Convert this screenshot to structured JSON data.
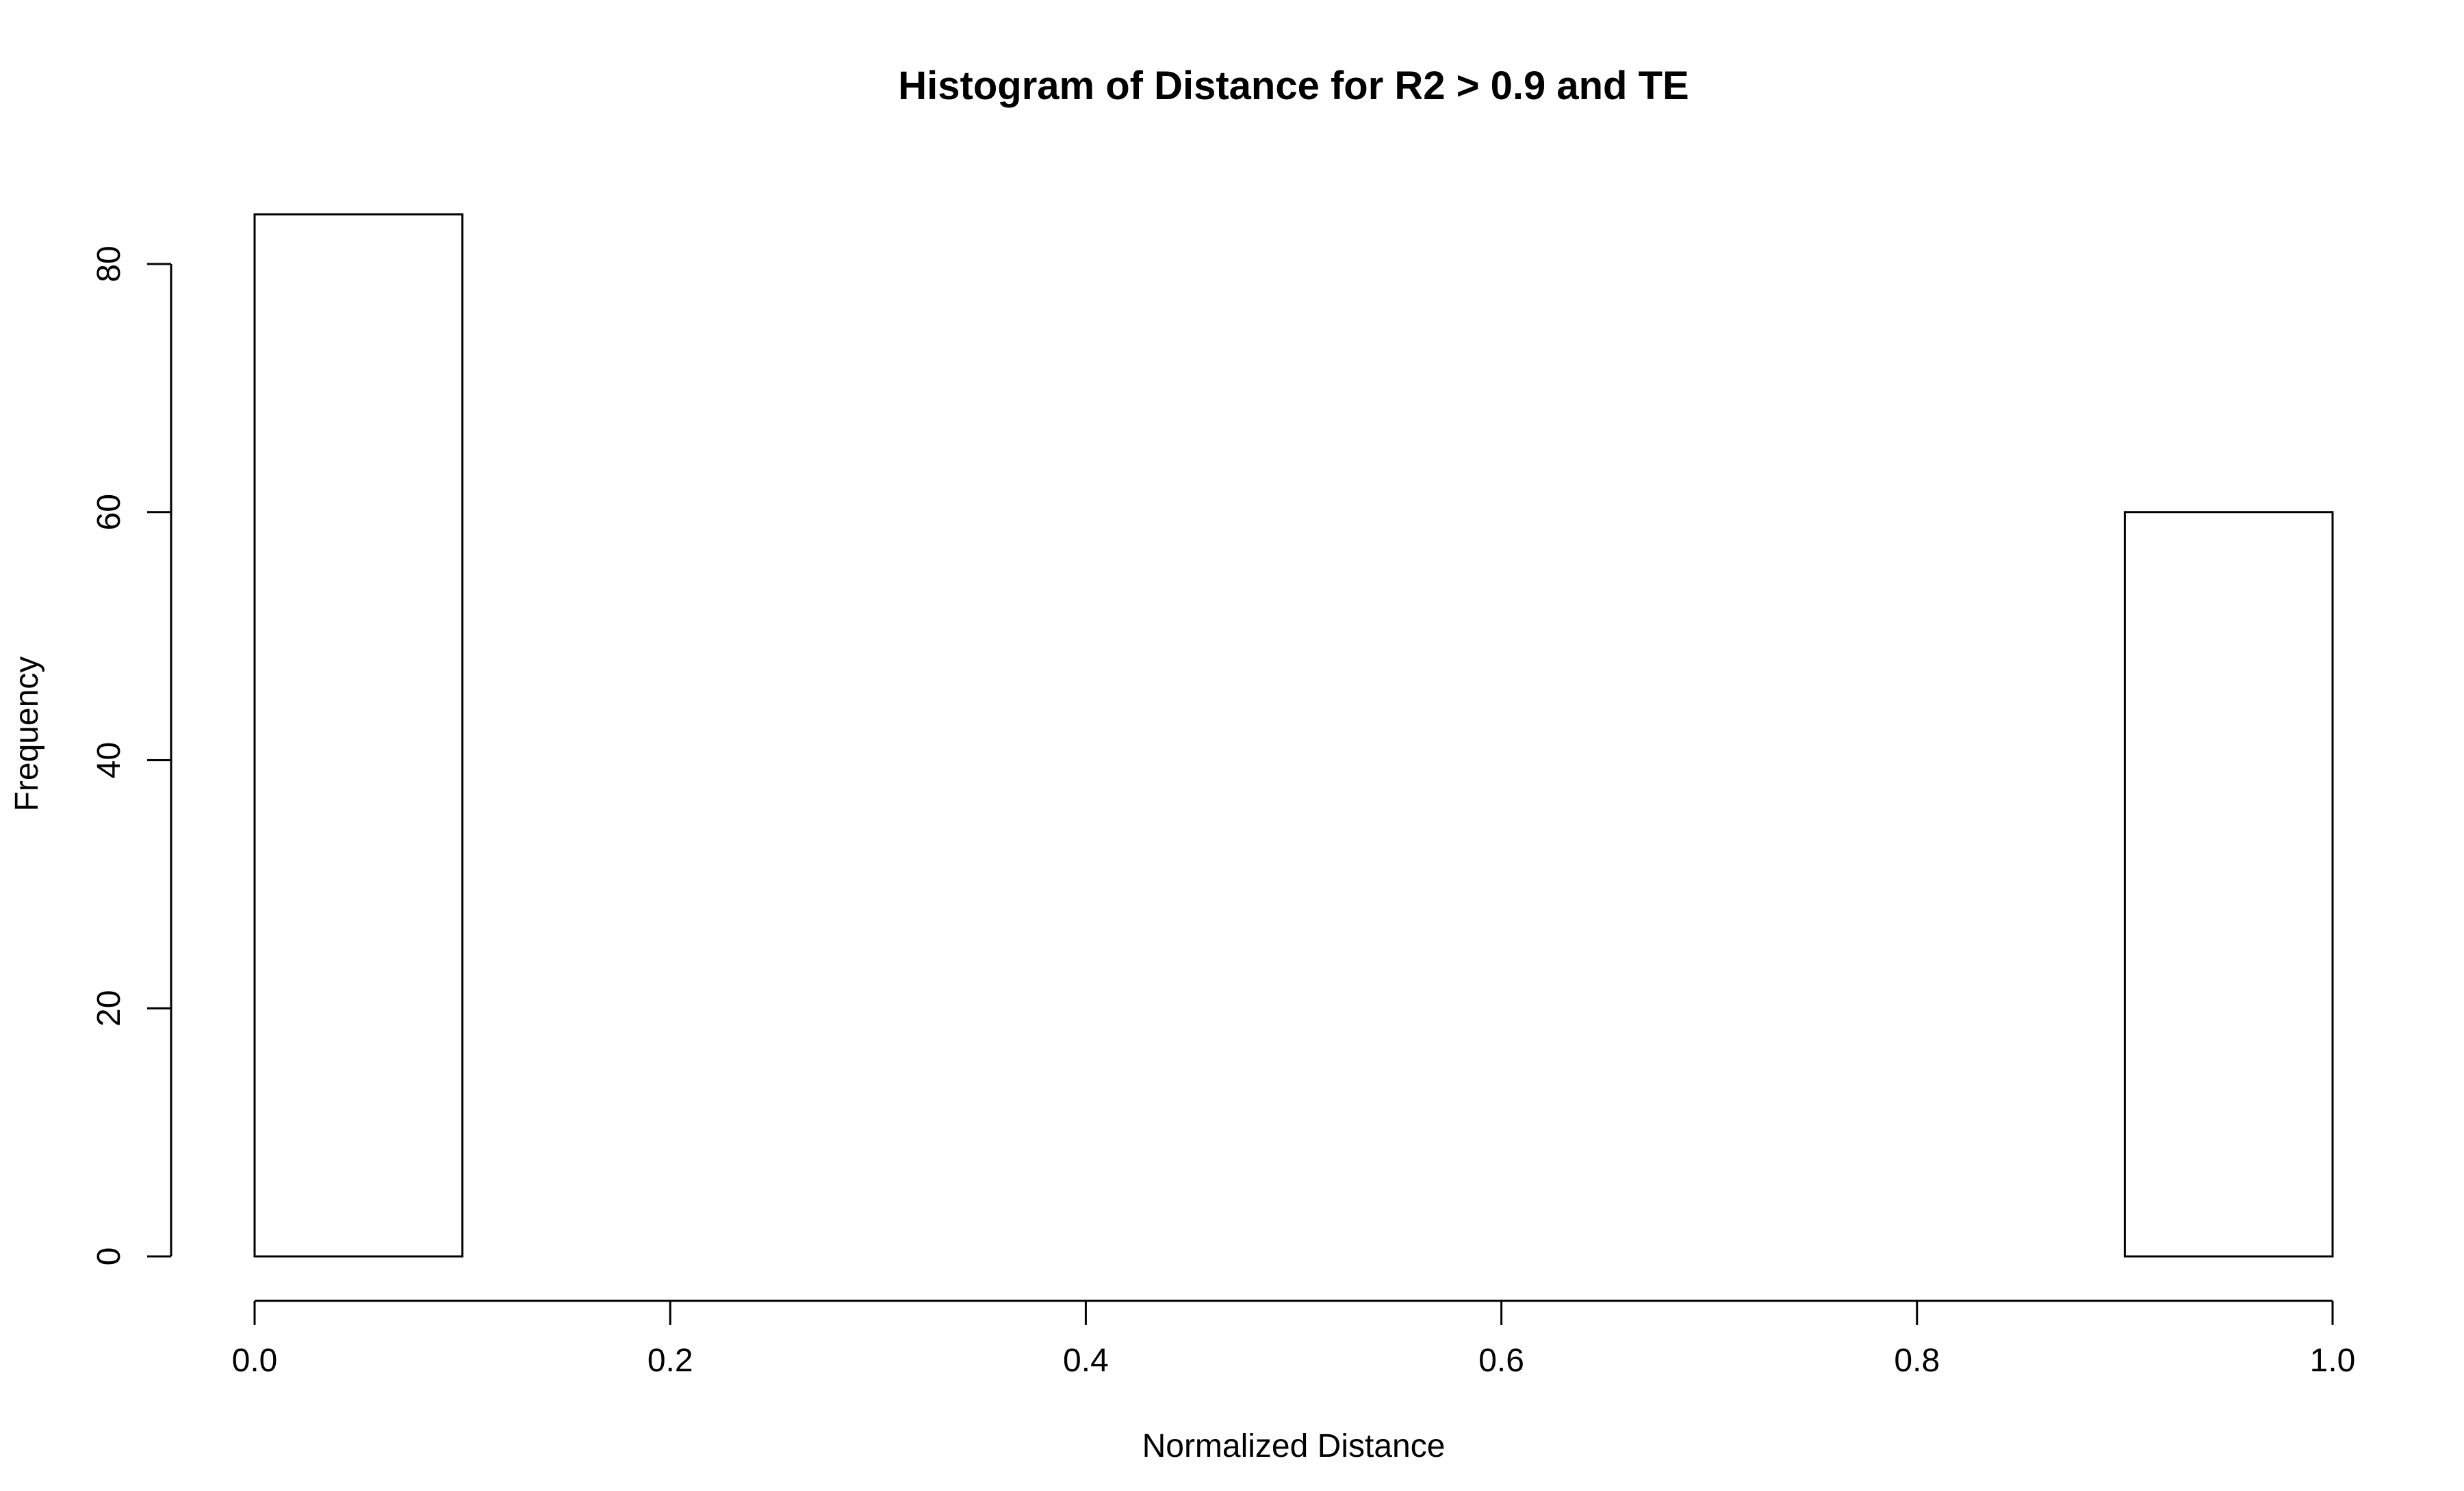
{
  "chart_data": {
    "type": "bar",
    "title": "Histogram of Distance for R2 >  0.9  and TE",
    "xlabel": "Normalized Distance",
    "ylabel": "Frequency",
    "bins": [
      [
        0.0,
        0.1
      ],
      [
        0.1,
        0.2
      ],
      [
        0.2,
        0.3
      ],
      [
        0.3,
        0.4
      ],
      [
        0.4,
        0.5
      ],
      [
        0.5,
        0.6
      ],
      [
        0.6,
        0.7
      ],
      [
        0.7,
        0.8
      ],
      [
        0.8,
        0.9
      ],
      [
        0.9,
        1.0
      ]
    ],
    "values": [
      84,
      0,
      0,
      0,
      0,
      0,
      0,
      0,
      0,
      60
    ],
    "xlim": [
      0.0,
      1.0
    ],
    "ylim": [
      0,
      80
    ],
    "x_ticks": [
      0.0,
      0.2,
      0.4,
      0.6,
      0.8,
      1.0
    ],
    "x_tick_labels": [
      "0.0",
      "0.2",
      "0.4",
      "0.6",
      "0.8",
      "1.0"
    ],
    "y_ticks": [
      0,
      20,
      40,
      60,
      80
    ],
    "y_tick_labels": [
      "0",
      "20",
      "40",
      "60",
      "80"
    ],
    "colors": {
      "bar_fill": "#ffffff",
      "bar_stroke": "#000000",
      "axis": "#000000"
    },
    "grid": false,
    "legend": "none"
  }
}
